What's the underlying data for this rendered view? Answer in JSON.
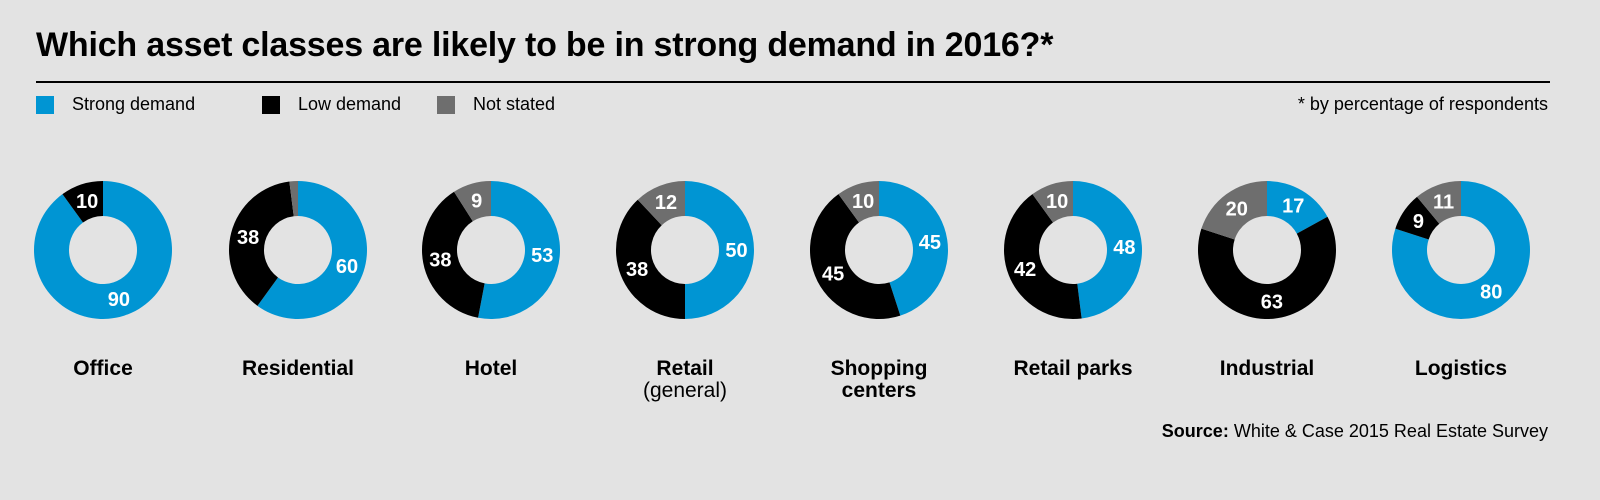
{
  "title": "Which asset classes are likely to be in strong demand in 2016?*",
  "note": "* by percentage of respondents",
  "source_label": "Source:",
  "source_text": "White & Case 2015 Real Estate Survey",
  "legend": [
    {
      "label": "Strong demand",
      "color": "#0095d3"
    },
    {
      "label": "Low demand",
      "color": "#000000"
    },
    {
      "label": "Not stated",
      "color": "#6e6e6e"
    }
  ],
  "chart_data": {
    "type": "donut",
    "series": [
      {
        "name": "Strong demand",
        "color": "#0095d3"
      },
      {
        "name": "Low demand",
        "color": "#000000"
      },
      {
        "name": "Not stated",
        "color": "#6e6e6e"
      }
    ],
    "categories": [
      {
        "label": "Office",
        "sublabel": "",
        "strong": 90,
        "low": 10,
        "not_stated": 0
      },
      {
        "label": "Residential",
        "sublabel": "",
        "strong": 60,
        "low": 38,
        "not_stated": 2
      },
      {
        "label": "Hotel",
        "sublabel": "",
        "strong": 53,
        "low": 38,
        "not_stated": 9
      },
      {
        "label": "Retail",
        "sublabel": "(general)",
        "strong": 50,
        "low": 38,
        "not_stated": 12
      },
      {
        "label": "Shopping",
        "sublabel": "centers",
        "strong": 45,
        "low": 45,
        "not_stated": 10
      },
      {
        "label": "Retail parks",
        "sublabel": "",
        "strong": 48,
        "low": 42,
        "not_stated": 10
      },
      {
        "label": "Industrial",
        "sublabel": "",
        "strong": 17,
        "low": 63,
        "not_stated": 20
      },
      {
        "label": "Logistics",
        "sublabel": "",
        "strong": 80,
        "low": 9,
        "not_stated": 11
      }
    ]
  }
}
